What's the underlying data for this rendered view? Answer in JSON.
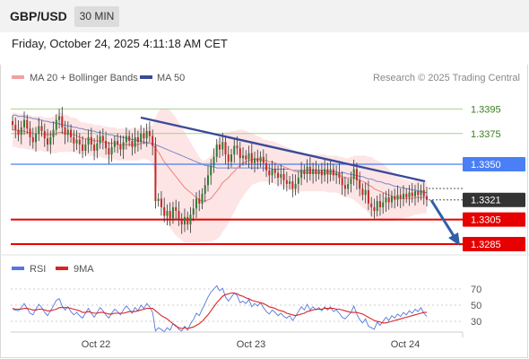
{
  "header": {
    "pair": "GBP/USD",
    "timeframe": "30 MIN",
    "datetime": "Friday, October 24, 2025 4:11:18 AM CET"
  },
  "legend": {
    "bb_label": "MA 20 + Bollinger Bands",
    "ma50_label": "MA 50",
    "credit": "Research © 2025 Trading Central"
  },
  "colors": {
    "candle_up": "#2e7d32",
    "candle_down": "#c62828",
    "bb_fill": "#fbd3d3",
    "ma20": "#f08080",
    "ma50": "#7a88c8",
    "trend": "#3a4a99",
    "support": "#e60000",
    "pivot": "#4a7ff5",
    "resistance": "#a8d08d",
    "rsi": "#5577dd",
    "rsi_ma": "#dd2222"
  },
  "chart_data": [
    {
      "type": "candlestick",
      "x_labels": [
        "Oct 22",
        "Oct 23",
        "Oct 24"
      ],
      "price_levels": [
        {
          "value": "1.3395",
          "kind": "resistance"
        },
        {
          "value": "1.3375",
          "kind": "resistance"
        },
        {
          "value": "1.3350",
          "kind": "pivot"
        },
        {
          "value": "1.3321",
          "kind": "last"
        },
        {
          "value": "1.3305",
          "kind": "support"
        },
        {
          "value": "1.3285",
          "kind": "support"
        }
      ],
      "last_price": 1.3321,
      "ylim": [
        1.3285,
        1.341
      ],
      "close": [
        1.3382,
        1.3378,
        1.3374,
        1.338,
        1.3386,
        1.3379,
        1.3372,
        1.3368,
        1.3375,
        1.3381,
        1.3377,
        1.3371,
        1.3366,
        1.3372,
        1.3378,
        1.3386,
        1.3389,
        1.338,
        1.3374,
        1.3378,
        1.3372,
        1.3367,
        1.337,
        1.3366,
        1.3361,
        1.3366,
        1.3372,
        1.3366,
        1.3361,
        1.3367,
        1.3373,
        1.3369,
        1.3363,
        1.3358,
        1.3364,
        1.3369,
        1.3366,
        1.3362,
        1.3368,
        1.3373,
        1.3369,
        1.3364,
        1.3372,
        1.3368,
        1.3375,
        1.3371,
        1.3377,
        1.3373,
        1.3365,
        1.332,
        1.3322,
        1.3315,
        1.3308,
        1.3312,
        1.3306,
        1.3315,
        1.3312,
        1.3305,
        1.3301,
        1.3307,
        1.3301,
        1.3309,
        1.3314,
        1.3322,
        1.3318,
        1.3326,
        1.3333,
        1.3341,
        1.3349,
        1.3356,
        1.3366,
        1.3362,
        1.3368,
        1.3358,
        1.3352,
        1.3358,
        1.3365,
        1.3363,
        1.3355,
        1.3357,
        1.3354,
        1.3359,
        1.3351,
        1.3355,
        1.3352,
        1.3356,
        1.3351,
        1.3345,
        1.3341,
        1.3346,
        1.3343,
        1.3339,
        1.3342,
        1.3337,
        1.3334,
        1.3336,
        1.333,
        1.3334,
        1.3339,
        1.3345,
        1.3342,
        1.3348,
        1.3342,
        1.3346,
        1.3342,
        1.3345,
        1.3341,
        1.3346,
        1.3342,
        1.3346,
        1.3341,
        1.3343,
        1.3339,
        1.3333,
        1.333,
        1.3334,
        1.3338,
        1.3346,
        1.3337,
        1.333,
        1.3325,
        1.3329,
        1.3318,
        1.3315,
        1.3312,
        1.332,
        1.3315,
        1.3319,
        1.3323,
        1.3319,
        1.3324,
        1.3321,
        1.3325,
        1.3322,
        1.3326,
        1.3323,
        1.3327,
        1.3324,
        1.3328,
        1.3325,
        1.3329,
        1.3324,
        1.3321
      ],
      "ma20": [
        1.3378,
        1.3378,
        1.3377,
        1.3377,
        1.3377,
        1.3376,
        1.3376,
        1.3375,
        1.3375,
        1.3375,
        1.3375,
        1.3374,
        1.3374,
        1.3374,
        1.3374,
        1.3375,
        1.3376,
        1.3376,
        1.3375,
        1.3375,
        1.3374,
        1.3374,
        1.3373,
        1.3372,
        1.3371,
        1.3371,
        1.337,
        1.337,
        1.3369,
        1.3369,
        1.3369,
        1.3368,
        1.3368,
        1.3367,
        1.3367,
        1.3367,
        1.3366,
        1.3366,
        1.3366,
        1.3366,
        1.3366,
        1.3366,
        1.3366,
        1.3366,
        1.3367,
        1.3367,
        1.3367,
        1.3367,
        1.3366,
        1.3363,
        1.336,
        1.3356,
        1.3352,
        1.3349,
        1.3346,
        1.3343,
        1.334,
        1.3337,
        1.3334,
        1.3331,
        1.3329,
        1.3327,
        1.3325,
        1.3323,
        1.3321,
        1.332,
        1.332,
        1.3321,
        1.3322,
        1.3325,
        1.3328,
        1.3331,
        1.3335,
        1.3337,
        1.3339,
        1.3342,
        1.3344,
        1.3347,
        1.3349,
        1.3351,
        1.3352,
        1.3353,
        1.3354,
        1.3354,
        1.3354,
        1.3354,
        1.3353,
        1.3353,
        1.3352,
        1.3352,
        1.3351,
        1.335,
        1.3349,
        1.3348,
        1.3347,
        1.3346,
        1.3345,
        1.3344,
        1.3344,
        1.3344,
        1.3343,
        1.3343,
        1.3343,
        1.3343,
        1.3343,
        1.3343,
        1.3343,
        1.3343,
        1.3342,
        1.3342,
        1.3342,
        1.3342,
        1.3341,
        1.334,
        1.3339,
        1.3339,
        1.3339,
        1.3339,
        1.3338,
        1.3337,
        1.3336,
        1.3335,
        1.3333,
        1.3332,
        1.333,
        1.3329,
        1.3328,
        1.3327,
        1.3326,
        1.3325,
        1.3324,
        1.3323,
        1.3323,
        1.3322,
        1.3322,
        1.3322,
        1.3322,
        1.3322,
        1.3323,
        1.3323,
        1.3323,
        1.3323,
        1.3323
      ],
      "ma50": [
        1.339,
        1.339,
        1.3389,
        1.3389,
        1.3389,
        1.3388,
        1.3388,
        1.3387,
        1.3387,
        1.3386,
        1.3386,
        1.3385,
        1.3385,
        1.3384,
        1.3384,
        1.3383,
        1.3383,
        1.3382,
        1.3382,
        1.3381,
        1.3381,
        1.338,
        1.338,
        1.3379,
        1.3379,
        1.3378,
        1.3378,
        1.3377,
        1.3377,
        1.3376,
        1.3376,
        1.3375,
        1.3375,
        1.3374,
        1.3374,
        1.3373,
        1.3373,
        1.3372,
        1.3372,
        1.3371,
        1.3371,
        1.337,
        1.337,
        1.3369,
        1.3369,
        1.3368,
        1.3368,
        1.3367,
        1.3367,
        1.3366,
        1.3365,
        1.3364,
        1.3363,
        1.3362,
        1.3361,
        1.336,
        1.3359,
        1.3358,
        1.3357,
        1.3356,
        1.3355,
        1.3354,
        1.3353,
        1.3352,
        1.3351,
        1.335,
        1.3349,
        1.3349,
        1.3348,
        1.3348,
        1.3347,
        1.3347,
        1.3347,
        1.3347,
        1.3347,
        1.3347,
        1.3347,
        1.3347,
        1.3347,
        1.3347,
        1.3347,
        1.3347,
        1.3347,
        1.3347,
        1.3347,
        1.3347,
        1.3347,
        1.3347,
        1.3347,
        1.3346,
        1.3346,
        1.3346,
        1.3346,
        1.3346,
        1.3346,
        1.3346,
        1.3345,
        1.3345,
        1.3345,
        1.3345,
        1.3345,
        1.3345,
        1.3345,
        1.3345,
        1.3345,
        1.3345,
        1.3345,
        1.3345,
        1.3344,
        1.3344,
        1.3344,
        1.3344,
        1.3343,
        1.3343,
        1.3343,
        1.3342,
        1.3342,
        1.3341,
        1.3341,
        1.334,
        1.334,
        1.3339,
        1.3338,
        1.3338,
        1.3337,
        1.3336,
        1.3336,
        1.3335,
        1.3334,
        1.3334,
        1.3333,
        1.3332,
        1.3332,
        1.3331,
        1.3331,
        1.333,
        1.333,
        1.3329,
        1.3329,
        1.3328,
        1.3328,
        1.3327,
        1.3327
      ],
      "bb_width": [
        0.0014,
        0.0014,
        0.0014,
        0.0014,
        0.0014,
        0.0014,
        0.0014,
        0.0014,
        0.0014,
        0.0014,
        0.0014,
        0.0014,
        0.0014,
        0.0014,
        0.0015,
        0.0016,
        0.0016,
        0.0016,
        0.0015,
        0.0015,
        0.0014,
        0.0014,
        0.0014,
        0.0013,
        0.0013,
        0.0013,
        0.0013,
        0.0013,
        0.0013,
        0.0013,
        0.0013,
        0.0013,
        0.0013,
        0.0013,
        0.0013,
        0.0013,
        0.0013,
        0.0013,
        0.0013,
        0.0013,
        0.0013,
        0.0013,
        0.0013,
        0.0013,
        0.0013,
        0.0013,
        0.0013,
        0.0014,
        0.0016,
        0.0025,
        0.0033,
        0.0039,
        0.0043,
        0.0046,
        0.0048,
        0.0048,
        0.0048,
        0.0047,
        0.0046,
        0.0045,
        0.0043,
        0.0041,
        0.0039,
        0.0037,
        0.0035,
        0.0033,
        0.0033,
        0.0034,
        0.0035,
        0.0037,
        0.0039,
        0.004,
        0.004,
        0.0039,
        0.0037,
        0.0035,
        0.0033,
        0.0031,
        0.0029,
        0.0027,
        0.0025,
        0.0023,
        0.0021,
        0.002,
        0.0019,
        0.0018,
        0.0017,
        0.0017,
        0.0017,
        0.0017,
        0.0017,
        0.0017,
        0.0017,
        0.0017,
        0.0017,
        0.0017,
        0.0017,
        0.0017,
        0.0016,
        0.0016,
        0.0015,
        0.0015,
        0.0015,
        0.0015,
        0.0015,
        0.0015,
        0.0015,
        0.0015,
        0.0015,
        0.0015,
        0.0015,
        0.0015,
        0.0015,
        0.0016,
        0.0016,
        0.0016,
        0.0017,
        0.0018,
        0.0019,
        0.002,
        0.0021,
        0.0022,
        0.0023,
        0.0024,
        0.0024,
        0.0024,
        0.0024,
        0.0023,
        0.0022,
        0.0021,
        0.002,
        0.0019,
        0.0018,
        0.0017,
        0.0016,
        0.0015,
        0.0015,
        0.0014,
        0.0014,
        0.0014,
        0.0013,
        0.0013,
        0.0013,
        0.0013,
        0.0013
      ],
      "trendline": [
        [
          1.339,
          1.3357
        ]
      ],
      "forecast_target": 1.3285
    },
    {
      "type": "line",
      "series": [
        {
          "name": "RSI"
        },
        {
          "name": "9MA"
        }
      ],
      "y_ticks": [
        "70",
        "50",
        "30"
      ],
      "ylim": [
        20,
        80
      ],
      "rsi": [
        45,
        44,
        43,
        47,
        52,
        46,
        40,
        38,
        45,
        51,
        47,
        41,
        37,
        43,
        49,
        56,
        58,
        49,
        44,
        48,
        42,
        38,
        41,
        37,
        34,
        40,
        46,
        40,
        35,
        41,
        47,
        43,
        38,
        34,
        40,
        45,
        42,
        38,
        44,
        49,
        45,
        40,
        47,
        43,
        50,
        46,
        52,
        48,
        41,
        18,
        22,
        20,
        17,
        22,
        19,
        27,
        25,
        20,
        18,
        24,
        19,
        27,
        32,
        40,
        37,
        45,
        52,
        60,
        66,
        70,
        74,
        68,
        71,
        60,
        55,
        60,
        65,
        62,
        53,
        55,
        52,
        57,
        48,
        52,
        49,
        53,
        47,
        42,
        39,
        44,
        41,
        37,
        40,
        36,
        34,
        37,
        31,
        36,
        42,
        48,
        44,
        51,
        44,
        48,
        44,
        47,
        43,
        48,
        44,
        48,
        42,
        44,
        40,
        35,
        33,
        37,
        41,
        49,
        39,
        32,
        28,
        33,
        24,
        22,
        20,
        29,
        25,
        30,
        35,
        31,
        37,
        34,
        39,
        36,
        41,
        38,
        43,
        40,
        45,
        42,
        47,
        40,
        36
      ],
      "rsi_ma": [
        46,
        45,
        45,
        45,
        46,
        46,
        45,
        44,
        44,
        45,
        45,
        44,
        43,
        43,
        44,
        45,
        47,
        47,
        47,
        47,
        46,
        45,
        44,
        43,
        41,
        41,
        42,
        41,
        40,
        40,
        41,
        41,
        40,
        39,
        39,
        40,
        40,
        40,
        40,
        41,
        42,
        42,
        42,
        43,
        44,
        45,
        46,
        46,
        46,
        43,
        40,
        37,
        35,
        33,
        30,
        27,
        24,
        22,
        21,
        22,
        21,
        22,
        23,
        25,
        27,
        30,
        34,
        38,
        43,
        48,
        53,
        57,
        61,
        63,
        64,
        65,
        65,
        64,
        62,
        61,
        59,
        58,
        56,
        55,
        54,
        53,
        52,
        50,
        48,
        47,
        46,
        44,
        43,
        42,
        40,
        39,
        38,
        37,
        38,
        39,
        40,
        42,
        43,
        44,
        45,
        45,
        45,
        46,
        46,
        46,
        46,
        45,
        45,
        44,
        43,
        42,
        41,
        41,
        41,
        40,
        39,
        37,
        35,
        33,
        31,
        30,
        29,
        28,
        28,
        29,
        30,
        31,
        32,
        33,
        34,
        35,
        36,
        37,
        38,
        39,
        40,
        41,
        41
      ]
    }
  ]
}
